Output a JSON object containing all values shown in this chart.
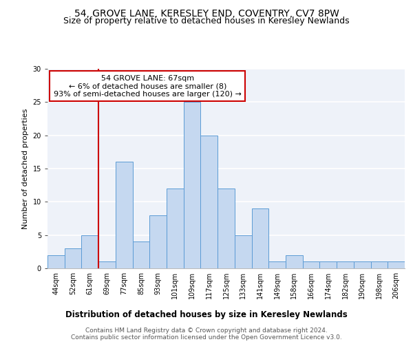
{
  "title1": "54, GROVE LANE, KERESLEY END, COVENTRY, CV7 8PW",
  "title2": "Size of property relative to detached houses in Keresley Newlands",
  "xlabel": "Distribution of detached houses by size in Keresley Newlands",
  "ylabel": "Number of detached properties",
  "footer": "Contains HM Land Registry data © Crown copyright and database right 2024.\nContains public sector information licensed under the Open Government Licence v3.0.",
  "categories": [
    "44sqm",
    "52sqm",
    "61sqm",
    "69sqm",
    "77sqm",
    "85sqm",
    "93sqm",
    "101sqm",
    "109sqm",
    "117sqm",
    "125sqm",
    "133sqm",
    "141sqm",
    "149sqm",
    "158sqm",
    "166sqm",
    "174sqm",
    "182sqm",
    "190sqm",
    "198sqm",
    "206sqm"
  ],
  "values": [
    2,
    3,
    5,
    1,
    16,
    4,
    8,
    12,
    25,
    20,
    12,
    5,
    9,
    1,
    2,
    1,
    1,
    1,
    1,
    1,
    1
  ],
  "bar_color": "#c5d8f0",
  "bar_edge_color": "#5b9bd5",
  "vline_x_index": 3,
  "vline_color": "#cc0000",
  "annotation_text": "54 GROVE LANE: 67sqm\n← 6% of detached houses are smaller (8)\n93% of semi-detached houses are larger (120) →",
  "annotation_box_color": "#ffffff",
  "annotation_box_edge": "#cc0000",
  "ylim": [
    0,
    30
  ],
  "yticks": [
    0,
    5,
    10,
    15,
    20,
    25,
    30
  ],
  "background_color": "#eef2f9",
  "grid_color": "#ffffff",
  "title1_fontsize": 10,
  "title2_fontsize": 9,
  "xlabel_fontsize": 8.5,
  "ylabel_fontsize": 8,
  "tick_fontsize": 7,
  "annotation_fontsize": 8,
  "footer_fontsize": 6.5
}
